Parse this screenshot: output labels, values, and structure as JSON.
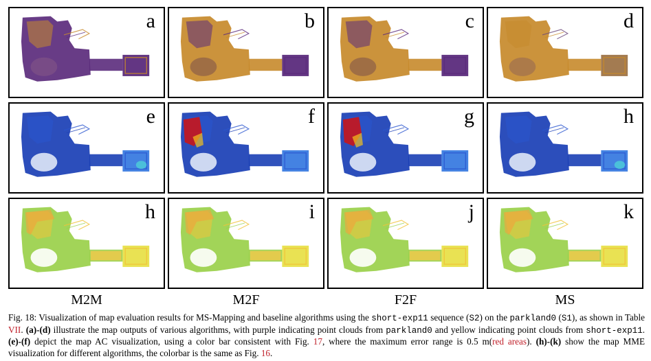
{
  "panels": [
    {
      "letter": "a",
      "style": "purple-yellow"
    },
    {
      "letter": "b",
      "style": "yellow-dominant"
    },
    {
      "letter": "c",
      "style": "yellow-dominant"
    },
    {
      "letter": "d",
      "style": "yellow-mostly"
    },
    {
      "letter": "e",
      "style": "blue-error"
    },
    {
      "letter": "f",
      "style": "blue-error-red"
    },
    {
      "letter": "g",
      "style": "blue-error-red"
    },
    {
      "letter": "h",
      "style": "blue-error"
    },
    {
      "letter": "h",
      "style": "mme"
    },
    {
      "letter": "i",
      "style": "mme"
    },
    {
      "letter": "j",
      "style": "mme"
    },
    {
      "letter": "k",
      "style": "mme"
    }
  ],
  "columns": [
    "M2M",
    "M2F",
    "F2F",
    "MS"
  ],
  "caption": {
    "p1": "Fig. 18: Visualization of map evaluation results for MS-Mapping and baseline algorithms using the ",
    "m1": "short-exp11",
    "p2": " sequence (",
    "m2": "S2",
    "p3": ") on the ",
    "m3": "parkland0",
    "p4": " (",
    "m4": "S1",
    "p5": "), as shown in Table ",
    "r1": "VII",
    "p6": ". ",
    "b1": "(a)-(d)",
    "p7": " illustrate the map outputs of various algorithms, with purple indicating point clouds from ",
    "m5": "parkland0",
    "p8": " and yellow indicating point clouds from ",
    "m6": "short-exp11",
    "p9": ". ",
    "b2": "(e)-(f)",
    "p10": " depict the map AC visualization, using a color bar consistent with Fig. ",
    "r2": "17",
    "p11": ", where the maximum error range is 0.5 m(",
    "r3": "red areas",
    "p12": "). ",
    "b3": "(h)-(k)",
    "p13": " show the map MME visualization for different algorithms, the colorbar is the same as Fig. ",
    "r4": "16",
    "p14": "."
  },
  "colors": {
    "purple": "#5b2b7c",
    "yellow": "#c78a2b",
    "blue": "#1a3fb5",
    "red": "#c8151b",
    "green": "#9ad04a"
  }
}
